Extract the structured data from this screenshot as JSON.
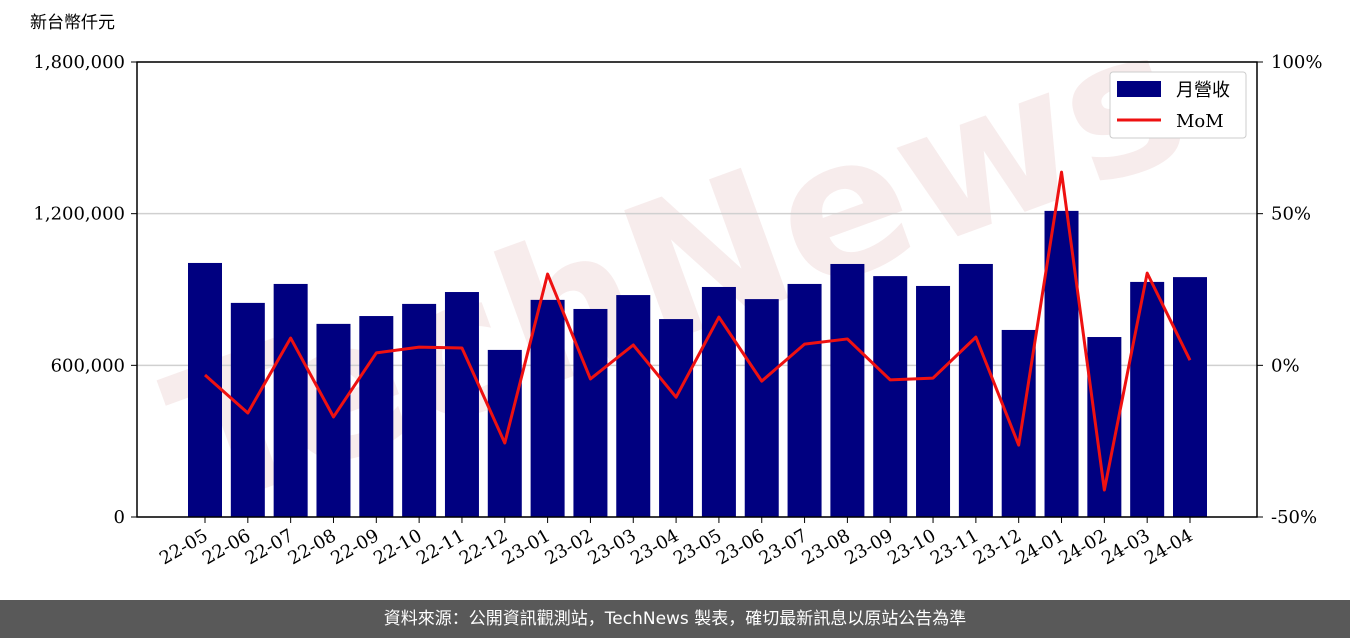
{
  "chart_data": {
    "type": "bar-line",
    "y_label": "新台幣仟元",
    "watermark": "TechNews",
    "categories": [
      "22-05",
      "22-06",
      "22-07",
      "22-08",
      "22-09",
      "22-10",
      "22-11",
      "22-12",
      "23-01",
      "23-02",
      "23-03",
      "23-04",
      "23-05",
      "23-06",
      "23-07",
      "23-08",
      "23-09",
      "23-10",
      "23-11",
      "23-12",
      "24-01",
      "24-02",
      "24-03",
      "24-04"
    ],
    "series": [
      {
        "name": "月營收",
        "color": "#000080",
        "values": [
          1005000,
          847000,
          922000,
          764000,
          795000,
          843000,
          890000,
          661000,
          859000,
          823000,
          878000,
          783000,
          910000,
          862000,
          922000,
          1001000,
          953000,
          914000,
          1001000,
          740000,
          1211000,
          712000,
          930000,
          949000
        ]
      },
      {
        "name": "MoM",
        "color": "#ee1111",
        "axis": "y2",
        "values": [
          -3.2,
          -15.7,
          9.0,
          -17.0,
          4.1,
          6.0,
          5.7,
          -25.6,
          30.1,
          -4.5,
          6.7,
          -10.5,
          15.9,
          -5.2,
          7.0,
          8.7,
          -4.8,
          -4.2,
          9.3,
          -26.3,
          63.7,
          -41.1,
          30.4,
          1.7
        ]
      }
    ],
    "ylim": [
      0,
      1800000
    ],
    "yticks": [
      0,
      {
        "value": 600000,
        "label": "600,000"
      },
      {
        "value": 1200000,
        "label": "1,200,000"
      },
      {
        "value": 1800000,
        "label": "1,800,000"
      }
    ],
    "y2lim": [
      -50,
      100
    ],
    "y2ticks": [
      {
        "value": -50,
        "label": "-50%"
      },
      {
        "value": 0,
        "label": "0%"
      },
      {
        "value": 50,
        "label": "50%"
      },
      {
        "value": 100,
        "label": "100%"
      }
    ],
    "grid": true,
    "legend": "upper right"
  },
  "footer": "資料來源：公開資訊觀測站，TechNews 製表，確切最新訊息以原站公告為準"
}
